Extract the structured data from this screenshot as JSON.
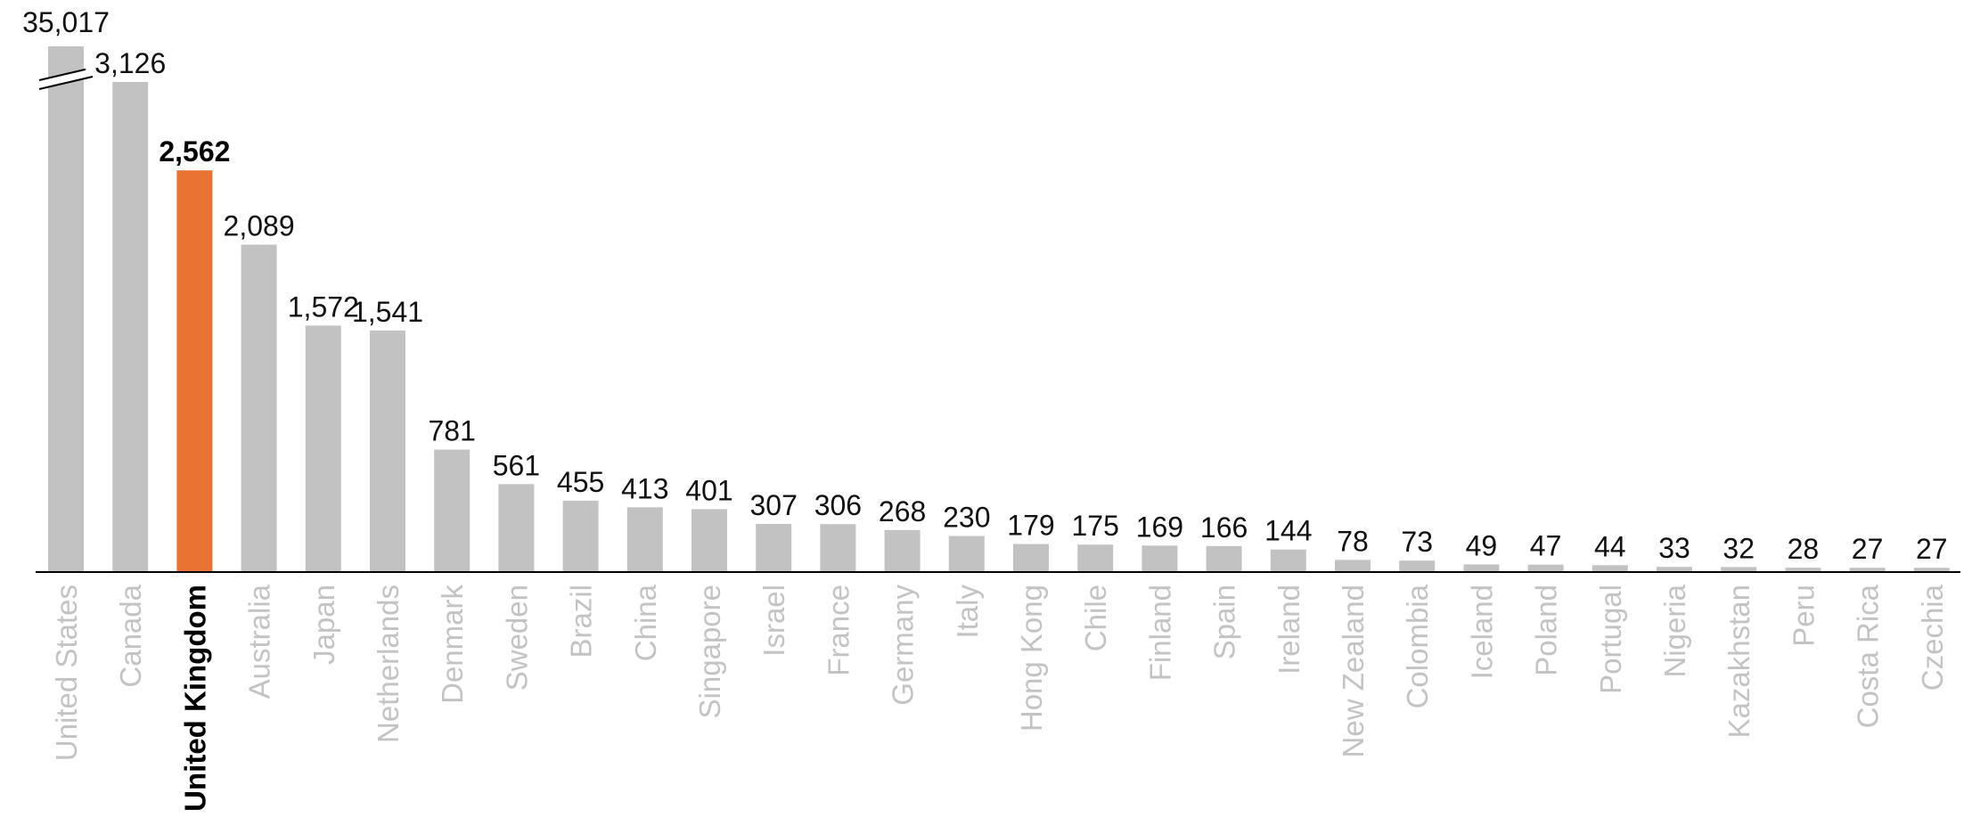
{
  "chart_data": {
    "type": "bar",
    "categories": [
      "United States",
      "Canada",
      "United Kingdom",
      "Australia",
      "Japan",
      "Netherlands",
      "Denmark",
      "Sweden",
      "Brazil",
      "China",
      "Singapore",
      "Israel",
      "France",
      "Germany",
      "Italy",
      "Hong Kong",
      "Chile",
      "Finland",
      "Spain",
      "Ireland",
      "New Zealand",
      "Colombia",
      "Iceland",
      "Poland",
      "Portugal",
      "Nigeria",
      "Kazakhstan",
      "Peru",
      "Costa Rica",
      "Czechia"
    ],
    "values": [
      35017,
      3126,
      2562,
      2089,
      1572,
      1541,
      781,
      561,
      455,
      413,
      401,
      307,
      306,
      268,
      230,
      179,
      175,
      169,
      166,
      144,
      78,
      73,
      49,
      47,
      44,
      33,
      32,
      28,
      27,
      27
    ],
    "value_labels": [
      "35,017",
      "3,126",
      "2,562",
      "2,089",
      "1,572",
      "1,541",
      "781",
      "561",
      "455",
      "413",
      "401",
      "307",
      "306",
      "268",
      "230",
      "179",
      "175",
      "169",
      "166",
      "144",
      "78",
      "73",
      "49",
      "47",
      "44",
      "33",
      "32",
      "28",
      "27",
      "27"
    ],
    "highlight": "United Kingdom",
    "axis_break": "United States",
    "title": "",
    "xlabel": "",
    "ylabel": "",
    "ylim": [
      0,
      3126
    ],
    "grid": false,
    "legend": "none"
  },
  "colors": {
    "bar": "#c2c2c2",
    "highlight_bar": "#ea7233",
    "axis": "#000000",
    "category_text": "#c3c3c3",
    "highlight_text": "#000000"
  }
}
